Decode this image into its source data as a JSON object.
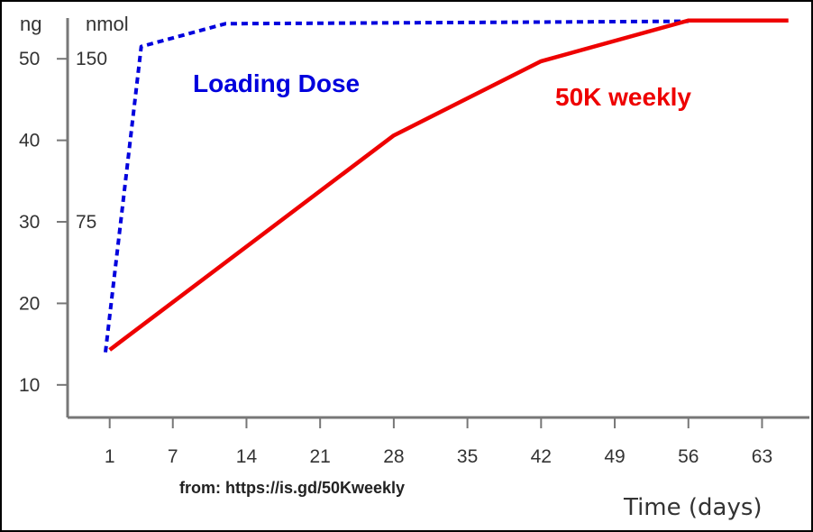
{
  "chart_data": {
    "type": "line",
    "xlabel": "Time (days)",
    "ylabel_left": "ng",
    "ylabel_right": "nmol",
    "x_ticks": [
      1,
      7,
      14,
      21,
      28,
      35,
      42,
      49,
      56,
      63
    ],
    "y_ticks": [
      10,
      20,
      30,
      40,
      50
    ],
    "y_nmol_ticks": [
      {
        "label": "150",
        "ng": 50
      },
      {
        "label": "75",
        "ng": 30
      }
    ],
    "xlim": [
      -3,
      67.5
    ],
    "ylim": [
      6,
      55
    ],
    "series": [
      {
        "name": "Loading Dose",
        "style": "dashed",
        "color": "#0000dd",
        "x": [
          0.6,
          4,
          12,
          56
        ],
        "y": [
          14,
          51.5,
          54.3,
          54.6
        ]
      },
      {
        "name": "50K weekly",
        "style": "solid",
        "color": "#ee0000",
        "x": [
          1,
          28,
          42,
          56,
          65.5
        ],
        "y": [
          14.3,
          40.6,
          49.7,
          54.7,
          54.7
        ]
      }
    ],
    "annotations": [
      {
        "text": "Loading Dose",
        "color": "#0000dd"
      },
      {
        "text": "50K weekly",
        "color": "#ee0000"
      }
    ],
    "source": "from: https://is.gd/50Kweekly",
    "grid": false
  }
}
